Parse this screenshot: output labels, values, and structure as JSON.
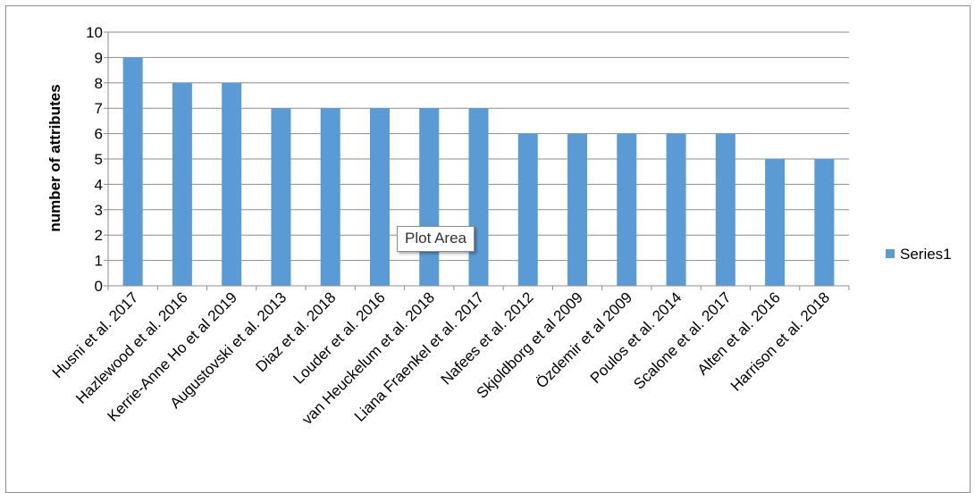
{
  "chart_data": {
    "type": "bar",
    "categories": [
      "Husni et al. 2017",
      "Hazlewood et al. 2016",
      "Kerrie-Anne Ho et al  2019",
      "Augustovski et al. 2013",
      "Diaz et al. 2018",
      "Louder et al. 2016",
      "van Heuckelum et al. 2018",
      "Liana Fraenkel et al. 2017",
      "Nafees et al. 2012",
      "Skjoldborg et al 2009",
      "Özdemir et al  2009",
      "Poulos et al. 2014",
      "Scalone et al. 2017",
      "Alten et al. 2016",
      "Harrison et al. 2018"
    ],
    "series": [
      {
        "name": "Series1",
        "values": [
          9,
          8,
          8,
          7,
          7,
          7,
          7,
          7,
          6,
          6,
          6,
          6,
          6,
          5,
          5
        ]
      }
    ],
    "yticks": [
      "0",
      "1",
      "2",
      "3",
      "4",
      "5",
      "6",
      "7",
      "8",
      "9",
      "10"
    ],
    "ylim": [
      0,
      10
    ],
    "xlabel": "",
    "ylabel": "number of attributes",
    "grid": true,
    "legend_position": "right",
    "bar_color": "#5b9bd5"
  },
  "tooltip": {
    "text": "Plot Area"
  }
}
